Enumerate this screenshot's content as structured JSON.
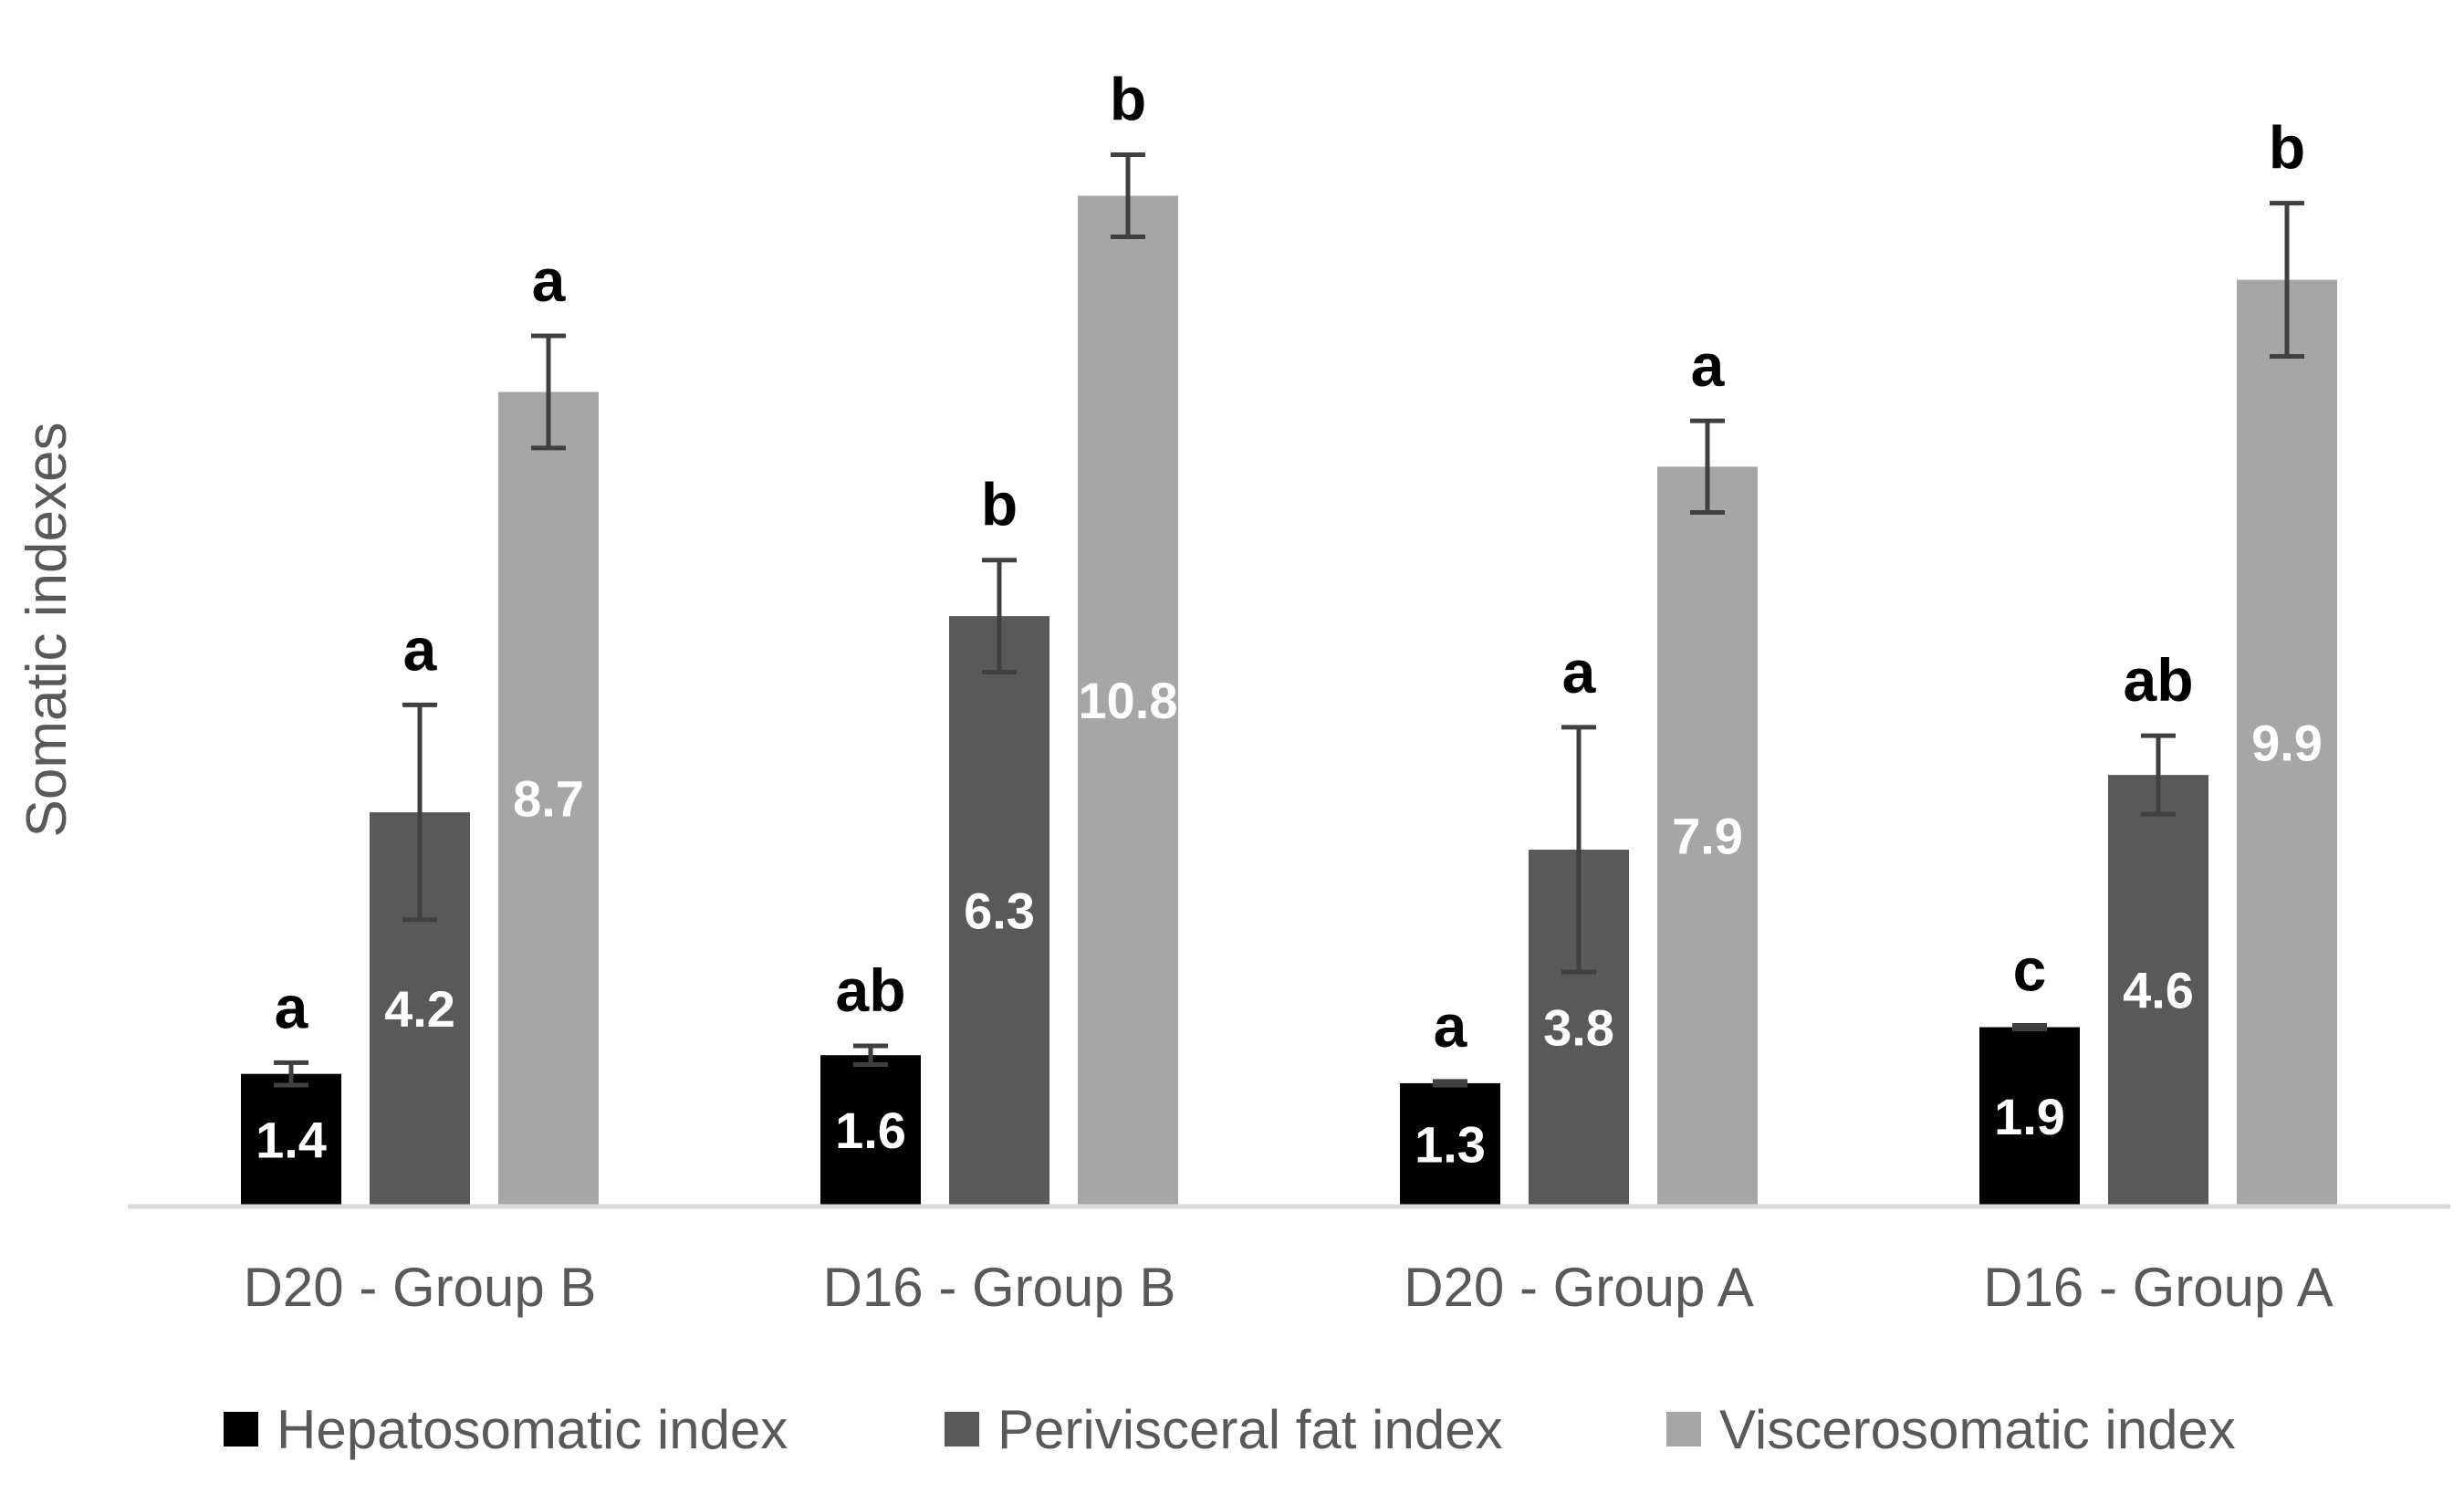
{
  "chart_data": {
    "type": "bar",
    "title": "",
    "xlabel": "",
    "ylabel": "Somatic indexes",
    "categories": [
      "D20 - Group B",
      "D16 - Group B",
      "D20 - Group A",
      "D16 - Group A"
    ],
    "series": [
      {
        "name": "Hepatosomatic index",
        "color": "#000000",
        "values": [
          1.4,
          1.6,
          1.3,
          1.9
        ],
        "labels": [
          "1.4",
          "1.6",
          "1.3",
          "1.9"
        ],
        "errors": [
          0.12,
          0.1,
          0.02,
          0.02
        ],
        "significance": [
          "a",
          "ab",
          "a",
          "c"
        ]
      },
      {
        "name": "Perivisceral fat index",
        "color": "#595959",
        "values": [
          4.2,
          6.3,
          3.8,
          4.6
        ],
        "labels": [
          "4.2",
          "6.3",
          "3.8",
          "4.6"
        ],
        "errors": [
          1.15,
          0.6,
          1.31,
          0.42
        ],
        "significance": [
          "a",
          "b",
          "a",
          "ab"
        ]
      },
      {
        "name": "Viscerosomatic index",
        "color": "#a6a6a6",
        "values": [
          8.7,
          10.8,
          7.9,
          9.9
        ],
        "labels": [
          "8.7",
          "10.8",
          "7.9",
          "9.9"
        ],
        "errors": [
          0.6,
          0.44,
          0.49,
          0.82
        ],
        "significance": [
          "a",
          "b",
          "a",
          "b"
        ]
      }
    ],
    "ylim": [
      0,
      12.7
    ],
    "grid": false,
    "legend_position": "bottom"
  }
}
